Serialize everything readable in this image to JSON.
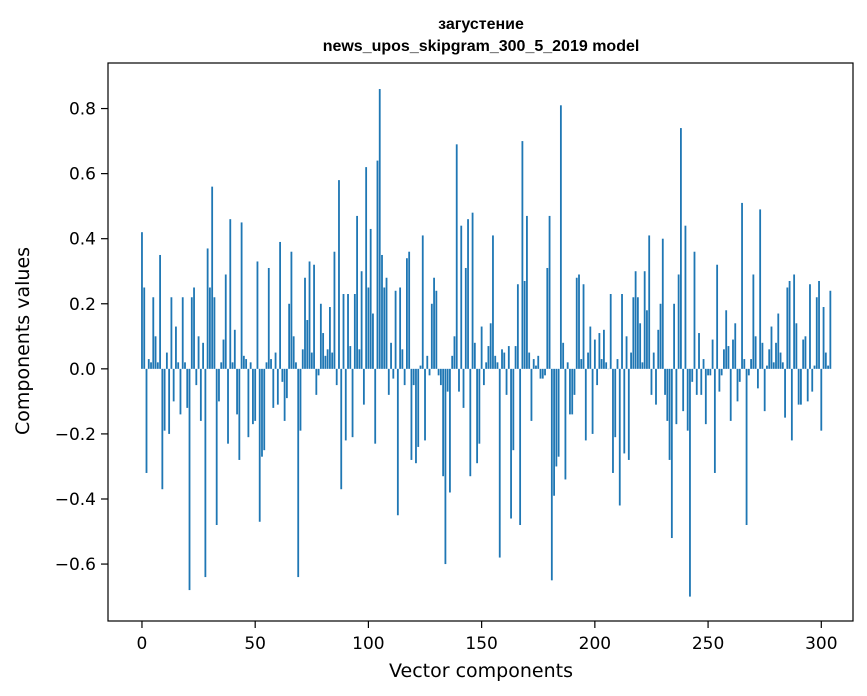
{
  "chart_data": {
    "type": "bar",
    "title": "загустение",
    "subtitle": "news_upos_skipgram_300_5_2019 model",
    "xlabel": "Vector components",
    "ylabel": "Components values",
    "xlim": [
      -15,
      314
    ],
    "ylim": [
      -0.775,
      0.94
    ],
    "xticks": [
      0,
      50,
      100,
      150,
      200,
      250,
      300
    ],
    "xtick_labels": [
      "0",
      "50",
      "100",
      "150",
      "200",
      "250",
      "300"
    ],
    "yticks": [
      -0.6,
      -0.4,
      -0.2,
      0.0,
      0.2,
      0.4,
      0.6,
      0.8
    ],
    "ytick_labels": [
      "−0.6",
      "−0.4",
      "−0.2",
      "0.0",
      "0.2",
      "0.4",
      "0.6",
      "0.8"
    ],
    "grid": false,
    "bar_color": "#1f77b4",
    "values": [
      0.42,
      0.25,
      -0.32,
      0.03,
      0.02,
      0.22,
      0.1,
      0.02,
      0.35,
      -0.37,
      -0.19,
      0.05,
      -0.2,
      0.22,
      -0.1,
      0.13,
      0.02,
      -0.14,
      0.22,
      0.02,
      -0.12,
      -0.68,
      0.22,
      0.25,
      -0.05,
      0.1,
      -0.16,
      0.08,
      -0.64,
      0.37,
      0.25,
      0.56,
      0.22,
      -0.48,
      -0.1,
      0.02,
      0.09,
      0.29,
      -0.23,
      0.46,
      0.02,
      0.12,
      -0.14,
      -0.28,
      0.45,
      0.04,
      0.03,
      -0.21,
      0.02,
      -0.17,
      -0.16,
      0.33,
      -0.47,
      -0.27,
      -0.25,
      0.02,
      0.31,
      0.03,
      -0.12,
      0.05,
      -0.11,
      0.39,
      -0.04,
      -0.16,
      -0.09,
      0.2,
      0.36,
      0.1,
      0.02,
      -0.64,
      -0.19,
      0.06,
      0.28,
      0.15,
      0.33,
      0.05,
      0.32,
      -0.08,
      -0.02,
      0.2,
      0.11,
      0.04,
      0.06,
      0.19,
      0.05,
      0.36,
      -0.05,
      0.58,
      -0.37,
      0.23,
      -0.22,
      0.23,
      0.07,
      -0.21,
      0.23,
      0.47,
      0.06,
      0.3,
      -0.11,
      0.62,
      0.25,
      0.43,
      0.17,
      -0.23,
      0.64,
      0.86,
      0.35,
      0.25,
      0.28,
      -0.08,
      0.08,
      -0.03,
      0.24,
      -0.45,
      0.25,
      0.06,
      -0.05,
      0.34,
      0.36,
      -0.28,
      -0.05,
      -0.29,
      -0.24,
      0.01,
      0.41,
      -0.22,
      0.04,
      -0.02,
      0.2,
      0.28,
      0.24,
      -0.02,
      -0.05,
      -0.33,
      -0.6,
      -0.07,
      -0.38,
      0.04,
      0.1,
      0.69,
      -0.07,
      0.44,
      -0.12,
      0.31,
      0.46,
      -0.33,
      0.48,
      0.08,
      -0.29,
      -0.23,
      0.13,
      -0.05,
      0.02,
      0.07,
      0.14,
      0.41,
      0.04,
      0.02,
      -0.58,
      0.06,
      0.05,
      -0.08,
      0.07,
      -0.46,
      -0.25,
      0.07,
      0.26,
      -0.48,
      0.7,
      0.27,
      0.47,
      0.05,
      -0.16,
      0.03,
      0.01,
      0.04,
      -0.03,
      -0.03,
      -0.02,
      0.31,
      0.47,
      -0.65,
      -0.39,
      -0.3,
      -0.27,
      0.81,
      0.08,
      -0.34,
      0.02,
      -0.14,
      -0.14,
      -0.08,
      0.28,
      0.29,
      0.03,
      0.26,
      -0.22,
      0.05,
      0.13,
      -0.2,
      0.09,
      -0.05,
      0.11,
      0.03,
      0.12,
      0.02,
      0.0,
      0.23,
      -0.32,
      -0.21,
      0.03,
      -0.42,
      0.23,
      -0.26,
      0.1,
      -0.28,
      0.05,
      0.22,
      0.3,
      0.22,
      0.14,
      0.02,
      0.3,
      0.18,
      0.41,
      -0.08,
      0.05,
      -0.11,
      0.12,
      0.2,
      0.4,
      -0.08,
      -0.16,
      -0.28,
      -0.52,
      0.2,
      -0.17,
      0.29,
      0.74,
      -0.13,
      0.44,
      -0.19,
      -0.7,
      -0.04,
      0.36,
      -0.08,
      0.11,
      -0.08,
      0.03,
      -0.17,
      -0.02,
      -0.02,
      0.09,
      -0.32,
      0.32,
      -0.07,
      -0.02,
      0.06,
      0.18,
      0.07,
      -0.16,
      0.09,
      0.14,
      -0.1,
      -0.04,
      0.51,
      0.03,
      -0.48,
      -0.02,
      0.03,
      0.29,
      0.1,
      -0.06,
      0.49,
      0.08,
      -0.13,
      0.01,
      0.06,
      0.13,
      0.02,
      0.08,
      0.17,
      0.05,
      0.02,
      -0.15,
      0.25,
      0.27,
      -0.22,
      0.29,
      0.14,
      -0.11,
      -0.11,
      0.09,
      0.1,
      -0.1,
      0.26,
      -0.07,
      0.01,
      0.22,
      0.27,
      -0.19,
      0.19,
      0.05,
      0.01,
      0.24
    ]
  }
}
